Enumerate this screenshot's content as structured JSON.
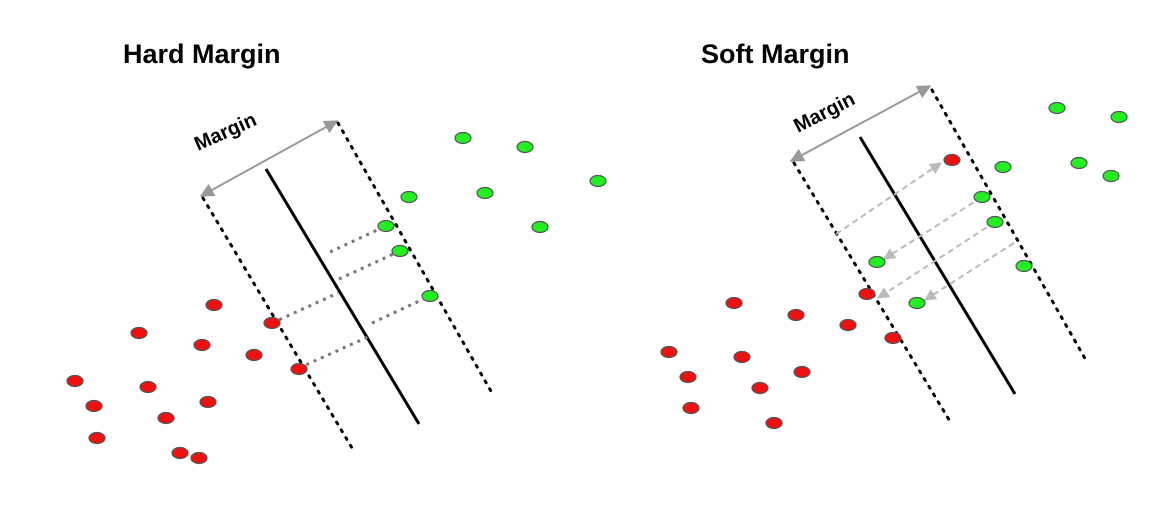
{
  "panels": {
    "hard": {
      "title": "Hard Margin",
      "margin_label": "Margin"
    },
    "soft": {
      "title": "Soft Margin",
      "margin_label": "Margin"
    }
  },
  "colors": {
    "positive_point": "#22ee22",
    "negative_point": "#ee1111",
    "point_outline": "#555555",
    "hyperplane": "#000000",
    "margin_boundary": "#000000",
    "margin_arrow": "#999999",
    "hard_projection": "#777777",
    "soft_slack_arrow": "#bbbbbb"
  },
  "icons": {
    "arrowhead": "triangle-arrowhead"
  }
}
